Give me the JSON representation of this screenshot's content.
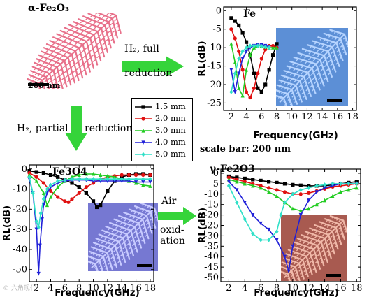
{
  "labels": {
    "alpha_title": "α-Fe₂O₃",
    "alpha_scale": "200 nm",
    "h2_full_line1": "H₂, full",
    "h2_full_line2": "reduction",
    "h2_partial": "H₂, partial",
    "h2_partial_reduction": "reduction",
    "scale_bar": "scale bar: 200 nm",
    "air": "Air",
    "oxid1": "oxid-",
    "oxid2": "ation",
    "watermark": "© 六角现代"
  },
  "colors": {
    "green_arrow": "#35d43a",
    "fern": "#e8708a",
    "sem_blue": "#5c8fd6",
    "sem_purple": "#7678d2",
    "sem_red": "#a85a50"
  },
  "chart_data": [
    {
      "name": "Fe",
      "type": "line",
      "title": "Fe",
      "xlabel": "Frequency(GHz)",
      "ylabel": "RL(dB)",
      "xlim": [
        1,
        18.5
      ],
      "ylim": [
        -27,
        1
      ],
      "xticks": [
        "2",
        "4",
        "6",
        "8",
        "10",
        "12",
        "14",
        "16",
        "18"
      ],
      "yticks": [
        "0",
        "-5",
        "-10",
        "-15",
        "-20",
        "-25"
      ],
      "series": [
        {
          "name": "1.5 mm",
          "color": "#000000",
          "marker": "square",
          "x": [
            2,
            2.5,
            3,
            3.5,
            4,
            4.5,
            5,
            5.5,
            6,
            6.5,
            7,
            7.5,
            8
          ],
          "y": [
            -2,
            -2.8,
            -4,
            -6,
            -8.5,
            -12,
            -17,
            -21,
            -22,
            -20,
            -16,
            -12,
            -9
          ]
        },
        {
          "name": "2.0 mm",
          "color": "#e01010",
          "marker": "circle",
          "x": [
            2,
            2.5,
            3,
            3.5,
            4,
            4.5,
            5,
            5.5,
            6,
            6.5,
            7,
            7.5,
            8
          ],
          "y": [
            -5,
            -7.5,
            -11,
            -16,
            -22,
            -23.5,
            -21,
            -17,
            -13,
            -10.5,
            -9.5,
            -9.5,
            -10
          ]
        },
        {
          "name": "3.0 mm",
          "color": "#22cc22",
          "marker": "triangle-up",
          "x": [
            2,
            2.5,
            3,
            3.5,
            4,
            4.5,
            5,
            5.5,
            6,
            6.5,
            7,
            7.5,
            8
          ],
          "y": [
            -9,
            -14,
            -21,
            -23,
            -16,
            -12,
            -10,
            -9.5,
            -9.5,
            -9.8,
            -10,
            -10,
            -10
          ]
        },
        {
          "name": "4.0 mm",
          "color": "#2020d8",
          "marker": "triangle-down",
          "x": [
            2,
            2.5,
            3,
            3.5,
            4,
            4.5,
            5,
            5.5,
            6,
            6.5,
            7
          ],
          "y": [
            -16,
            -22,
            -17,
            -13,
            -11,
            -10,
            -9.5,
            -9.3,
            -9.3,
            -9.5,
            -9.7
          ]
        },
        {
          "name": "5.0 mm",
          "color": "#30e0c8",
          "marker": "diamond",
          "x": [
            2,
            2.5,
            3,
            3.5,
            4,
            4.5,
            5,
            5.5,
            6,
            6.5,
            7
          ],
          "y": [
            -22,
            -17,
            -13,
            -11,
            -10,
            -9.5,
            -9.5,
            -9.5,
            -9.6,
            -9.8,
            -10
          ]
        }
      ]
    },
    {
      "name": "Fe3O4",
      "type": "line",
      "title": "Fe3O4",
      "xlabel": "Frequency(GHz)",
      "ylabel": "RL(dB)",
      "xlim": [
        1,
        18.5
      ],
      "ylim": [
        -56,
        2
      ],
      "xticks": [
        "2",
        "4",
        "6",
        "8",
        "10",
        "12",
        "14",
        "16",
        "18"
      ],
      "yticks": [
        "0",
        "-10",
        "-20",
        "-30",
        "-40",
        "-50"
      ],
      "series": [
        {
          "name": "1.5 mm",
          "color": "#000000",
          "marker": "square",
          "x": [
            1,
            2,
            3,
            4,
            5,
            6,
            7,
            8,
            9,
            10,
            10.5,
            11,
            12,
            13,
            14,
            15,
            16,
            17,
            18
          ],
          "y": [
            -1,
            -1.5,
            -2,
            -3,
            -4,
            -5.5,
            -7,
            -9,
            -12,
            -16,
            -19,
            -18,
            -11,
            -6,
            -4,
            -3,
            -2.5,
            -2.5,
            -3
          ]
        },
        {
          "name": "2.0 mm",
          "color": "#e01010",
          "marker": "circle",
          "x": [
            1,
            2,
            3,
            4,
            5,
            6,
            6.5,
            7,
            8,
            9,
            10,
            11,
            12,
            13,
            14,
            15,
            16,
            17,
            18
          ],
          "y": [
            -2,
            -4,
            -7,
            -11,
            -14,
            -16,
            -16.5,
            -15,
            -12,
            -9,
            -7,
            -5,
            -4,
            -3.5,
            -3,
            -3,
            -3,
            -3,
            -3
          ]
        },
        {
          "name": "3.0 mm",
          "color": "#22cc22",
          "marker": "triangle-up",
          "x": [
            1,
            2,
            3,
            3.5,
            4,
            5,
            6,
            7,
            8,
            9,
            10,
            11,
            12,
            13,
            14,
            15,
            16,
            17,
            18
          ],
          "y": [
            -3,
            -6,
            -12,
            -18,
            -14,
            -9,
            -6,
            -4,
            -3,
            -2.5,
            -2.5,
            -3,
            -3.5,
            -4,
            -5,
            -6,
            -7,
            -8,
            -8.5
          ]
        },
        {
          "name": "4.0 mm",
          "color": "#2020d8",
          "marker": "triangle-down",
          "x": [
            1,
            1.5,
            2,
            2.3,
            2.5,
            2.8,
            3,
            3.5,
            4,
            5,
            6,
            7,
            8,
            9,
            10,
            11,
            12,
            13,
            14,
            15,
            16,
            17,
            18
          ],
          "y": [
            -5,
            -12,
            -30,
            -52,
            -38,
            -25,
            -18,
            -12,
            -9,
            -7,
            -6,
            -5.5,
            -5.5,
            -5.5,
            -6,
            -6,
            -6,
            -6,
            -6,
            -6,
            -6.5,
            -6.5,
            -6.5
          ]
        },
        {
          "name": "5.0 mm",
          "color": "#30e0c8",
          "marker": "diamond",
          "x": [
            1,
            1.5,
            2,
            2.3,
            2.6,
            3,
            3.5,
            4,
            5,
            6,
            7,
            8,
            9,
            10,
            11,
            12,
            13,
            14,
            15,
            16,
            17,
            18
          ],
          "y": [
            -4,
            -12,
            -26,
            -29,
            -22,
            -15,
            -10,
            -8,
            -6,
            -5.5,
            -5,
            -5,
            -5,
            -5,
            -5,
            -5,
            -5,
            -5,
            -5,
            -5,
            -5,
            -5
          ]
        }
      ]
    },
    {
      "name": "gamma-Fe2O3",
      "type": "line",
      "title": "γ-Fe2O3",
      "xlabel": "Frequency(GHz)",
      "ylabel": "RL(dB)",
      "xlim": [
        1,
        18.5
      ],
      "ylim": [
        -52,
        2
      ],
      "xticks": [
        "2",
        "4",
        "6",
        "8",
        "10",
        "12",
        "14",
        "16",
        "18"
      ],
      "yticks": [
        "0",
        "-5",
        "-10",
        "-15",
        "-20",
        "-25",
        "-30",
        "-35",
        "-40",
        "-45",
        "-50"
      ],
      "series": [
        {
          "name": "1.5 mm",
          "color": "#000000",
          "marker": "square",
          "x": [
            2,
            3,
            4,
            5,
            6,
            7,
            8,
            9,
            10,
            11,
            12,
            13,
            14,
            15,
            16,
            17,
            18
          ],
          "y": [
            -1.5,
            -2,
            -2.5,
            -3,
            -3.5,
            -4,
            -4.5,
            -5,
            -5.5,
            -5.8,
            -6,
            -6,
            -6,
            -5.5,
            -5,
            -4.5,
            -4
          ]
        },
        {
          "name": "2.0 mm",
          "color": "#e01010",
          "marker": "circle",
          "x": [
            2,
            3,
            4,
            5,
            6,
            7,
            8,
            9,
            10,
            11,
            12,
            13,
            14,
            15,
            16,
            17,
            18
          ],
          "y": [
            -2,
            -3,
            -4,
            -5,
            -6,
            -7,
            -8,
            -9,
            -10,
            -10,
            -9.5,
            -8.5,
            -7.5,
            -6.5,
            -6,
            -5.5,
            -5
          ]
        },
        {
          "name": "3.0 mm",
          "color": "#22cc22",
          "marker": "triangle-up",
          "x": [
            2,
            3,
            4,
            5,
            6,
            7,
            8,
            9,
            10,
            11,
            12,
            13,
            14,
            15,
            16,
            17,
            18
          ],
          "y": [
            -3,
            -4,
            -5,
            -6,
            -7,
            -9,
            -11,
            -14,
            -17,
            -18,
            -17,
            -15,
            -13,
            -11,
            -9,
            -8,
            -7
          ]
        },
        {
          "name": "4.0 mm",
          "color": "#2020d8",
          "marker": "triangle-down",
          "x": [
            2,
            3,
            4,
            5,
            6,
            7,
            8,
            9,
            9.5,
            10,
            11,
            12,
            13,
            14,
            15,
            16,
            17,
            18
          ],
          "y": [
            -4,
            -8,
            -14,
            -20,
            -24,
            -27,
            -32,
            -40,
            -47,
            -35,
            -20,
            -13,
            -9,
            -7,
            -6,
            -5,
            -5,
            -5
          ]
        },
        {
          "name": "5.0 mm",
          "color": "#30e0c8",
          "marker": "diamond",
          "x": [
            2,
            3,
            4,
            5,
            6,
            7,
            8,
            8.5,
            9,
            10,
            11,
            12,
            13,
            14,
            15,
            16,
            17,
            18
          ],
          "y": [
            -6,
            -14,
            -22,
            -29,
            -32,
            -32,
            -28,
            -20,
            -14,
            -10,
            -8,
            -7,
            -6,
            -5.5,
            -5,
            -5,
            -5,
            -5
          ]
        }
      ]
    }
  ],
  "legend": [
    {
      "name": "1.5 mm",
      "color": "#000000",
      "marker": "square"
    },
    {
      "name": "2.0 mm",
      "color": "#e01010",
      "marker": "circle"
    },
    {
      "name": "3.0 mm",
      "color": "#22cc22",
      "marker": "triangle-up"
    },
    {
      "name": "4.0 mm",
      "color": "#2020d8",
      "marker": "triangle-down"
    },
    {
      "name": "5.0 mm",
      "color": "#30e0c8",
      "marker": "diamond"
    }
  ]
}
